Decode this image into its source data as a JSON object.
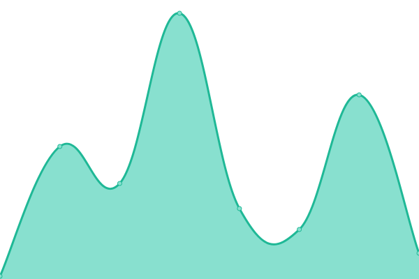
{
  "chart_data": {
    "type": "area",
    "categories": [
      null,
      null,
      null,
      null,
      null,
      null,
      null,
      null
    ],
    "values": [
      4,
      190,
      137,
      381,
      101,
      71,
      264,
      37
    ],
    "ylim": [
      0,
      400
    ],
    "color": "#1fb896",
    "fill": "#88e0cf"
  }
}
